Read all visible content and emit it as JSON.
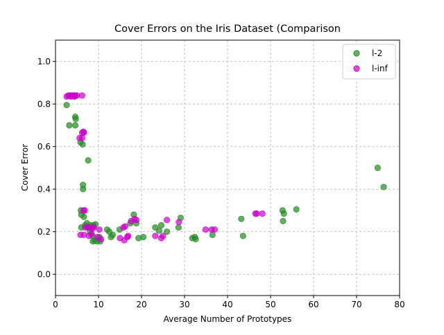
{
  "chart_data": {
    "type": "scatter",
    "title": "Cover Errors on the Iris Dataset (Comparison",
    "xlabel": "Average Number of Prototypes",
    "ylabel": "Cover Error",
    "xlim": [
      0,
      80
    ],
    "ylim": [
      -0.1,
      1.1
    ],
    "xticks": [
      "0",
      "10",
      "20",
      "30",
      "40",
      "50",
      "60",
      "70",
      "80"
    ],
    "yticks": [
      "0.0",
      "0.2",
      "0.4",
      "0.6",
      "0.8",
      "1.0"
    ],
    "grid": true,
    "legend_position": "top-right",
    "series": [
      {
        "name": "l-2",
        "color": "#228B22",
        "points": [
          [
            2.6,
            0.795
          ],
          [
            3.2,
            0.7
          ],
          [
            4.6,
            0.74
          ],
          [
            4.7,
            0.73
          ],
          [
            4.6,
            0.7
          ],
          [
            5.8,
            0.62
          ],
          [
            6.3,
            0.61
          ],
          [
            7.6,
            0.535
          ],
          [
            6.4,
            0.42
          ],
          [
            6.4,
            0.4
          ],
          [
            5.9,
            0.3
          ],
          [
            6.0,
            0.28
          ],
          [
            6.6,
            0.27
          ],
          [
            6.0,
            0.22
          ],
          [
            6.9,
            0.23
          ],
          [
            7.3,
            0.24
          ],
          [
            7.6,
            0.22
          ],
          [
            8.1,
            0.23
          ],
          [
            8.8,
            0.23
          ],
          [
            9.3,
            0.235
          ],
          [
            8.0,
            0.2
          ],
          [
            8.6,
            0.18
          ],
          [
            9.1,
            0.16
          ],
          [
            8.7,
            0.155
          ],
          [
            9.6,
            0.155
          ],
          [
            10.4,
            0.155
          ],
          [
            10.2,
            0.175
          ],
          [
            12.0,
            0.21
          ],
          [
            12.5,
            0.2
          ],
          [
            12.9,
            0.175
          ],
          [
            13.3,
            0.185
          ],
          [
            14.9,
            0.21
          ],
          [
            17.4,
            0.24
          ],
          [
            18.2,
            0.28
          ],
          [
            18.8,
            0.24
          ],
          [
            19.3,
            0.17
          ],
          [
            20.4,
            0.175
          ],
          [
            23.2,
            0.22
          ],
          [
            24.1,
            0.205
          ],
          [
            24.6,
            0.23
          ],
          [
            25.9,
            0.2
          ],
          [
            28.6,
            0.22
          ],
          [
            29.1,
            0.265
          ],
          [
            31.8,
            0.17
          ],
          [
            32.4,
            0.175
          ],
          [
            32.6,
            0.165
          ],
          [
            36.5,
            0.185
          ],
          [
            43.2,
            0.26
          ],
          [
            43.6,
            0.18
          ],
          [
            52.8,
            0.3
          ],
          [
            53.1,
            0.285
          ],
          [
            52.9,
            0.25
          ],
          [
            56.0,
            0.305
          ],
          [
            74.9,
            0.5
          ],
          [
            76.3,
            0.41
          ]
        ]
      },
      {
        "name": "l-inf",
        "color": "#CC00CC",
        "points": [
          [
            2.6,
            0.835
          ],
          [
            3.0,
            0.84
          ],
          [
            3.4,
            0.84
          ],
          [
            3.8,
            0.84
          ],
          [
            4.2,
            0.84
          ],
          [
            4.6,
            0.84
          ],
          [
            5.0,
            0.84
          ],
          [
            3.6,
            0.835
          ],
          [
            4.4,
            0.835
          ],
          [
            6.2,
            0.84
          ],
          [
            5.6,
            0.64
          ],
          [
            6.2,
            0.64
          ],
          [
            6.5,
            0.67
          ],
          [
            6.6,
            0.665
          ],
          [
            6.2,
            0.665
          ],
          [
            6.5,
            0.3
          ],
          [
            6.8,
            0.3
          ],
          [
            6.9,
            0.22
          ],
          [
            7.5,
            0.22
          ],
          [
            8.2,
            0.22
          ],
          [
            8.9,
            0.22
          ],
          [
            8.6,
            0.215
          ],
          [
            7.8,
            0.18
          ],
          [
            8.4,
            0.19
          ],
          [
            10.2,
            0.21
          ],
          [
            10.6,
            0.165
          ],
          [
            9.8,
            0.175
          ],
          [
            5.8,
            0.185
          ],
          [
            6.6,
            0.185
          ],
          [
            15.0,
            0.17
          ],
          [
            15.8,
            0.22
          ],
          [
            16.2,
            0.225
          ],
          [
            16.0,
            0.16
          ],
          [
            16.7,
            0.175
          ],
          [
            16.9,
            0.18
          ],
          [
            17.6,
            0.25
          ],
          [
            18.4,
            0.26
          ],
          [
            18.8,
            0.255
          ],
          [
            23.2,
            0.18
          ],
          [
            24.6,
            0.17
          ],
          [
            25.0,
            0.18
          ],
          [
            25.9,
            0.255
          ],
          [
            28.7,
            0.245
          ],
          [
            34.9,
            0.21
          ],
          [
            36.3,
            0.21
          ],
          [
            37.0,
            0.21
          ],
          [
            46.5,
            0.285
          ],
          [
            46.8,
            0.285
          ],
          [
            48.1,
            0.285
          ]
        ]
      }
    ]
  }
}
